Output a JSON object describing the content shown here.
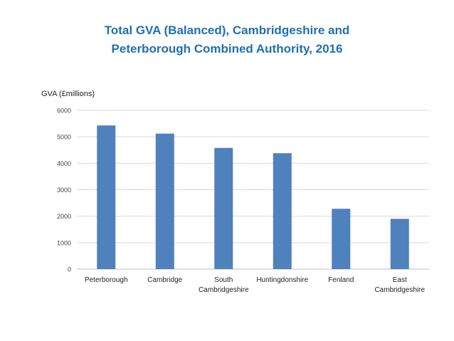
{
  "chart_data": {
    "type": "bar",
    "title_lines": [
      "Total GVA (Balanced), Cambridgeshire and",
      "Peterborough Combined Authority, 2016"
    ],
    "ylabel": "GVA (£millions)",
    "xlabel": "",
    "ylim": [
      0,
      6000
    ],
    "yticks": [
      0,
      1000,
      2000,
      3000,
      4000,
      5000,
      6000
    ],
    "grid": true,
    "categories": [
      [
        "Peterborough"
      ],
      [
        "Cambridge"
      ],
      [
        "South",
        "Cambridgeshire"
      ],
      [
        "Huntingdonshire"
      ],
      [
        "Fenland"
      ],
      [
        "East",
        "Cambridgeshire"
      ]
    ],
    "values": [
      5430,
      5120,
      4580,
      4380,
      2280,
      1900
    ],
    "bar_color": "#4f81bd"
  }
}
